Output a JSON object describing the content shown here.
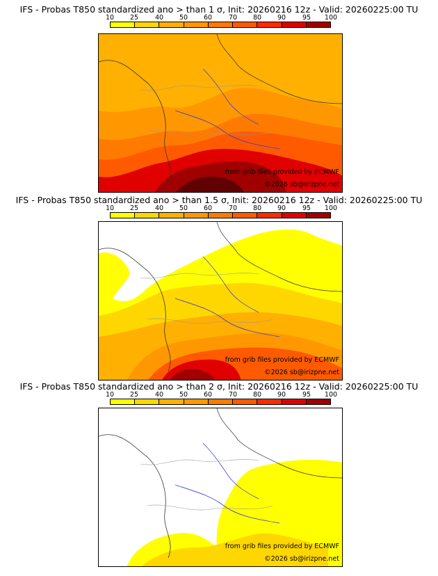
{
  "legend": {
    "labels": [
      "10",
      "25",
      "40",
      "50",
      "60",
      "70",
      "80",
      "90",
      "95",
      "100"
    ],
    "colors": [
      "#ffff00",
      "#ffd700",
      "#ffb000",
      "#ff9800",
      "#ff7a00",
      "#ff5a00",
      "#ff2a00",
      "#e00000",
      "#a00000",
      "#600000"
    ]
  },
  "panels": [
    {
      "title": "IFS - Probas T850  standardized ano > than 1 σ, Init: 20260216 12z - Valid: 20260225:00 TU",
      "credit_source": "from grib files provided by ECMWF",
      "credit_copyright": "©2026 sb@irizpne.net"
    },
    {
      "title": "IFS - Probas T850  standardized ano > than 1.5 σ, Init: 20260216 12z - Valid: 20260225:00 TU",
      "credit_source": "from grib files provided by ECMWF",
      "credit_copyright": "©2026 sb@irizpne.net"
    },
    {
      "title": "IFS - Probas T850  standardized ano > than 2 σ, Init: 20260216 12z - Valid: 20260225:00 TU",
      "credit_source": "from grib files provided by ECMWF",
      "credit_copyright": "©2026 sb@irizpne.net"
    }
  ]
}
